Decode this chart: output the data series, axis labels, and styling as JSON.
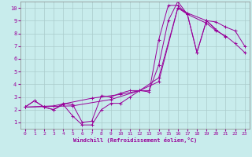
{
  "xlabel": "Windchill (Refroidissement éolien,°C)",
  "background_color": "#c8ecec",
  "line_color": "#990099",
  "grid_color": "#aacccc",
  "xlim": [
    -0.5,
    23.5
  ],
  "ylim": [
    0.5,
    10.5
  ],
  "xticks": [
    0,
    1,
    2,
    3,
    4,
    5,
    6,
    7,
    8,
    9,
    10,
    11,
    12,
    13,
    14,
    15,
    16,
    17,
    18,
    19,
    20,
    21,
    22,
    23
  ],
  "yticks": [
    1,
    2,
    3,
    4,
    5,
    6,
    7,
    8,
    9,
    10
  ],
  "line1_x": [
    0,
    1,
    2,
    3,
    4,
    5,
    6,
    7,
    8,
    9,
    10,
    11,
    12,
    13,
    14,
    15,
    16,
    17,
    18,
    19,
    20,
    21
  ],
  "line1_y": [
    2.2,
    2.7,
    2.2,
    2.0,
    2.5,
    2.4,
    1.0,
    1.1,
    3.1,
    3.0,
    3.3,
    3.5,
    3.5,
    3.4,
    7.5,
    10.2,
    10.2,
    9.5,
    6.5,
    9.0,
    8.3,
    7.7
  ],
  "line2_x": [
    0,
    1,
    2,
    3,
    4,
    5,
    6,
    7,
    8,
    9,
    10,
    11,
    12,
    13,
    14,
    15,
    16,
    17,
    18,
    19,
    20
  ],
  "line2_y": [
    2.2,
    2.7,
    2.2,
    2.0,
    2.4,
    1.5,
    0.8,
    0.8,
    2.0,
    2.5,
    2.5,
    3.0,
    3.5,
    3.5,
    5.5,
    9.0,
    10.5,
    9.5,
    6.5,
    9.0,
    8.3
  ],
  "line3_x": [
    0,
    3,
    7,
    10,
    12,
    14,
    16,
    17,
    19,
    20,
    21,
    22,
    23
  ],
  "line3_y": [
    2.2,
    2.3,
    2.9,
    3.2,
    3.5,
    4.5,
    10.0,
    9.6,
    9.0,
    8.9,
    8.5,
    8.2,
    7.0
  ],
  "line4_x": [
    0,
    5,
    9,
    12,
    14,
    16,
    17,
    19,
    20,
    21,
    22,
    23
  ],
  "line4_y": [
    2.2,
    2.3,
    2.8,
    3.5,
    4.2,
    10.0,
    9.5,
    8.8,
    8.2,
    7.8,
    7.2,
    6.5
  ]
}
